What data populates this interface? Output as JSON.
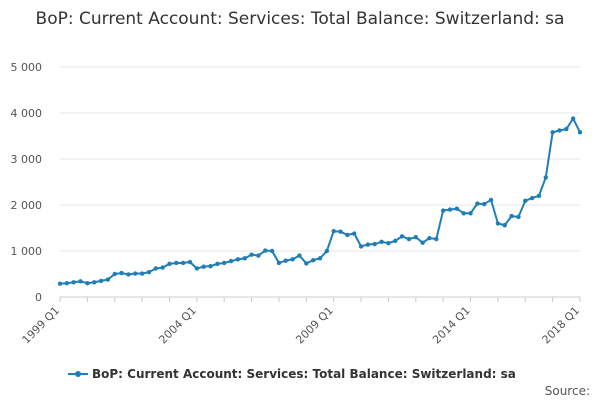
{
  "title": "BoP: Current Account: Services: Total Balance: Switzerland: sa",
  "credit": "Source:",
  "colors": {
    "series": "#1f7eb8",
    "grid": "#e6e6e6",
    "axis": "#cccccc"
  },
  "chart_data": {
    "type": "line",
    "title": "BoP: Current Account: Services: Total Balance: Switzerland: sa",
    "xlabel": "",
    "ylabel": "",
    "ylim": [
      0,
      5000
    ],
    "yticks": [
      0,
      1000,
      2000,
      3000,
      4000,
      5000
    ],
    "ytick_labels": [
      "0",
      "1 000",
      "2 000",
      "3 000",
      "4 000",
      "5 000"
    ],
    "xtick_labels": [
      "1999 Q1",
      "2004 Q1",
      "2009 Q1",
      "2014 Q1",
      "2018 Q1"
    ],
    "xtick_index": [
      0,
      20,
      40,
      60,
      76
    ],
    "grid": true,
    "legend": "bottom-center",
    "series": [
      {
        "name": "BoP: Current Account: Services: Total Balance: Switzerland: sa",
        "values": [
          290,
          300,
          320,
          340,
          300,
          320,
          350,
          380,
          500,
          520,
          490,
          510,
          510,
          540,
          620,
          640,
          720,
          740,
          740,
          760,
          620,
          660,
          670,
          720,
          740,
          780,
          820,
          840,
          920,
          900,
          1010,
          1000,
          740,
          790,
          820,
          900,
          730,
          800,
          840,
          1000,
          1430,
          1420,
          1350,
          1380,
          1100,
          1140,
          1150,
          1200,
          1170,
          1220,
          1320,
          1260,
          1300,
          1180,
          1280,
          1260,
          1880,
          1900,
          1920,
          1820,
          1820,
          2030,
          2020,
          2110,
          1600,
          1560,
          1760,
          1740,
          2090,
          2150,
          2200,
          2600,
          3580,
          3620,
          3650,
          3880,
          3580
        ]
      }
    ]
  }
}
